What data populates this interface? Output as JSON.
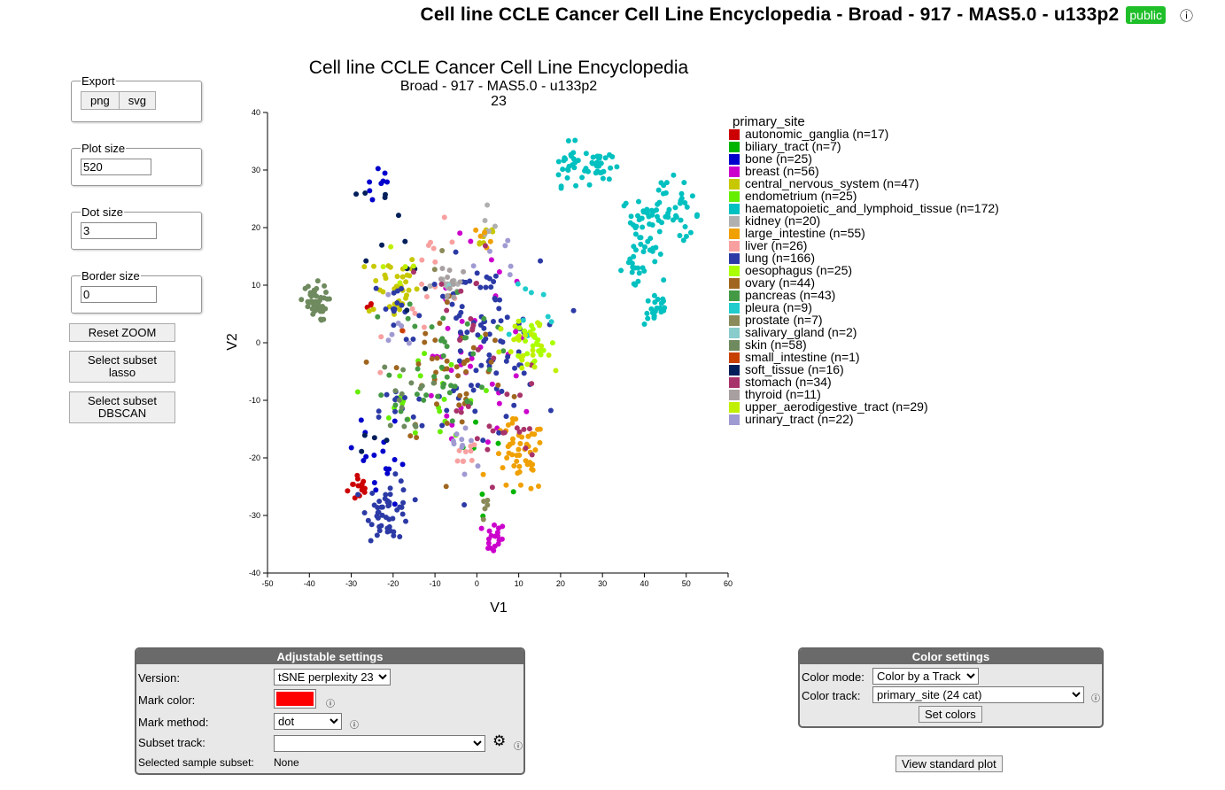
{
  "header": {
    "title": "Cell line CCLE Cancer Cell Line Encyclopedia - Broad - 917 - MAS5.0 - u133p2",
    "badge": "public",
    "info_glyph": "ⓘ"
  },
  "controls": {
    "export": {
      "legend": "Export",
      "png": "png",
      "svg": "svg"
    },
    "plot_size": {
      "legend": "Plot size",
      "value": "520"
    },
    "dot_size": {
      "legend": "Dot size",
      "value": "3"
    },
    "border_size": {
      "legend": "Border size",
      "value": "0"
    },
    "reset_zoom": "Reset ZOOM",
    "lasso_line1": "Select subset",
    "lasso_line2": "lasso",
    "dbscan_line1": "Select subset",
    "dbscan_line2": "DBSCAN"
  },
  "chart_data": {
    "type": "scatter",
    "title": "Cell line CCLE Cancer Cell Line Encyclopedia",
    "subtitle": "Broad - 917 - MAS5.0 - u133p2",
    "subtitle2": "23",
    "xlabel": "V1",
    "ylabel": "V2",
    "xlim": [
      -50,
      60
    ],
    "ylim": [
      -40,
      40
    ],
    "xticks": [
      -50,
      -40,
      -30,
      -20,
      -10,
      0,
      10,
      20,
      30,
      40,
      50,
      60
    ],
    "yticks": [
      -40,
      -30,
      -20,
      -10,
      0,
      10,
      20,
      30,
      40
    ],
    "legend_title": "primary_site",
    "legend_position": "right",
    "series": [
      {
        "name": "autonomic_ganglia (n=17)",
        "color": "#cc0000",
        "clusters": [
          [
            -28,
            -25,
            1.4,
            14
          ],
          [
            -26,
            6,
            0.6,
            3
          ]
        ]
      },
      {
        "name": "biliary_tract (n=7)",
        "color": "#00b400",
        "clusters": [
          [
            3,
            -17,
            5,
            7
          ]
        ]
      },
      {
        "name": "bone (n=25)",
        "color": "#0000cc",
        "clusters": [
          [
            -23,
            27,
            1.6,
            8
          ],
          [
            -24,
            -18,
            3,
            10
          ],
          [
            -21,
            -24,
            2,
            7
          ]
        ]
      },
      {
        "name": "breast (n=56)",
        "color": "#cc00cc",
        "clusters": [
          [
            4,
            -34,
            1.4,
            18
          ],
          [
            -3,
            -8,
            7,
            26
          ],
          [
            3,
            6,
            6,
            12
          ]
        ]
      },
      {
        "name": "central_nervous_system (n=47)",
        "color": "#c8c800",
        "clusters": [
          [
            -20,
            10,
            3,
            37
          ],
          [
            2,
            19,
            1.5,
            10
          ]
        ]
      },
      {
        "name": "endometrium (n=25)",
        "color": "#66ee00",
        "clusters": [
          [
            -8,
            -8,
            6,
            20
          ],
          [
            -18,
            -12,
            3,
            5
          ]
        ]
      },
      {
        "name": "haematopoietic_and_lymphoid_tissue (n=172)",
        "color": "#00c0c0",
        "clusters": [
          [
            22,
            31,
            1.8,
            26
          ],
          [
            29,
            31,
            1.6,
            30
          ],
          [
            45,
            24,
            2.2,
            30
          ],
          [
            39,
            21,
            2.2,
            20
          ],
          [
            50,
            22,
            1.6,
            14
          ],
          [
            37,
            13,
            1.6,
            16
          ],
          [
            41,
            15,
            1.6,
            14
          ],
          [
            43,
            6,
            1.5,
            22
          ]
        ]
      },
      {
        "name": "kidney (n=20)",
        "color": "#b0b0b0",
        "clusters": [
          [
            -7,
            10,
            2,
            14
          ],
          [
            3,
            20,
            1.2,
            6
          ]
        ]
      },
      {
        "name": "large_intestine (n=55)",
        "color": "#f0a000",
        "clusters": [
          [
            10,
            -20,
            3.2,
            50
          ],
          [
            2,
            19,
            1.5,
            5
          ]
        ]
      },
      {
        "name": "liver (n=26)",
        "color": "#f8a0a0",
        "clusters": [
          [
            -3,
            -20,
            1.6,
            9
          ],
          [
            -9,
            12,
            4,
            10
          ],
          [
            -14,
            5,
            4,
            7
          ]
        ]
      },
      {
        "name": "lung (n=166)",
        "color": "#2c3aa6",
        "clusters": [
          [
            -21,
            -29,
            2.6,
            50
          ],
          [
            1,
            0,
            7,
            90
          ],
          [
            -18,
            -12,
            2.6,
            12
          ],
          [
            -19,
            6,
            3,
            14
          ]
        ]
      },
      {
        "name": "oesophagus (n=25)",
        "color": "#aaff00",
        "clusters": [
          [
            14,
            0,
            2.4,
            25
          ]
        ]
      },
      {
        "name": "ovary (n=44)",
        "color": "#a06620",
        "clusters": [
          [
            -6,
            -5,
            7,
            44
          ]
        ]
      },
      {
        "name": "pancreas (n=43)",
        "color": "#449944",
        "clusters": [
          [
            -8,
            -2,
            6,
            43
          ]
        ]
      },
      {
        "name": "pleura (n=9)",
        "color": "#20cccc",
        "clusters": [
          [
            12,
            5,
            4,
            9
          ]
        ]
      },
      {
        "name": "prostate (n=7)",
        "color": "#8a8a5a",
        "clusters": [
          [
            1,
            -29,
            1.5,
            5
          ],
          [
            -8,
            14,
            2,
            2
          ]
        ]
      },
      {
        "name": "salivary_gland (n=2)",
        "color": "#88cccc",
        "clusters": [
          [
            -6,
            10,
            1,
            2
          ]
        ]
      },
      {
        "name": "skin (n=58)",
        "color": "#6e8a5e",
        "clusters": [
          [
            -39,
            7,
            1.6,
            44
          ],
          [
            -17,
            -10,
            3,
            14
          ]
        ]
      },
      {
        "name": "small_intestine (n=1)",
        "color": "#c84000",
        "clusters": [
          [
            -18,
            2,
            0.2,
            1
          ]
        ]
      },
      {
        "name": "soft_tissue (n=16)",
        "color": "#001f5a",
        "clusters": [
          [
            -23,
            26,
            3,
            5
          ],
          [
            -25,
            -17,
            2,
            4
          ],
          [
            -20,
            12,
            4,
            7
          ]
        ]
      },
      {
        "name": "stomach (n=34)",
        "color": "#a8336a",
        "clusters": [
          [
            6,
            -14,
            5,
            20
          ],
          [
            -3,
            4,
            6,
            14
          ]
        ]
      },
      {
        "name": "thyroid (n=11)",
        "color": "#a8a0a0",
        "clusters": [
          [
            -6,
            11,
            2,
            11
          ]
        ]
      },
      {
        "name": "upper_aerodigestive_tract (n=29)",
        "color": "#c0f000",
        "clusters": [
          [
            12,
            -2,
            3,
            24
          ],
          [
            -18,
            12,
            3,
            5
          ]
        ]
      },
      {
        "name": "urinary_tract (n=22)",
        "color": "#a09ad2",
        "clusters": [
          [
            -3,
            -18,
            3,
            10
          ],
          [
            -17,
            4,
            4,
            6
          ],
          [
            4,
            16,
            3,
            6
          ]
        ]
      }
    ]
  },
  "adjustable": {
    "title": "Adjustable settings",
    "version_label": "Version:",
    "version_value": "tSNE perplexity 23",
    "mark_color_label": "Mark color:",
    "mark_color": "#ff0000",
    "mark_method_label": "Mark method:",
    "mark_method_value": "dot",
    "subset_track_label": "Subset track:",
    "subset_track_value": "",
    "selected_subset_label": "Selected sample subset:",
    "selected_subset_value": "None",
    "info_glyph": "ⓘ",
    "gear_glyph": "⚙"
  },
  "color_settings": {
    "title": "Color settings",
    "color_mode_label": "Color mode:",
    "color_mode_value": "Color by a Track",
    "color_track_label": "Color track:",
    "color_track_value": "primary_site (24 cat)",
    "set_colors": "Set colors",
    "info_glyph": "ⓘ"
  },
  "view_standard_plot": "View standard plot"
}
